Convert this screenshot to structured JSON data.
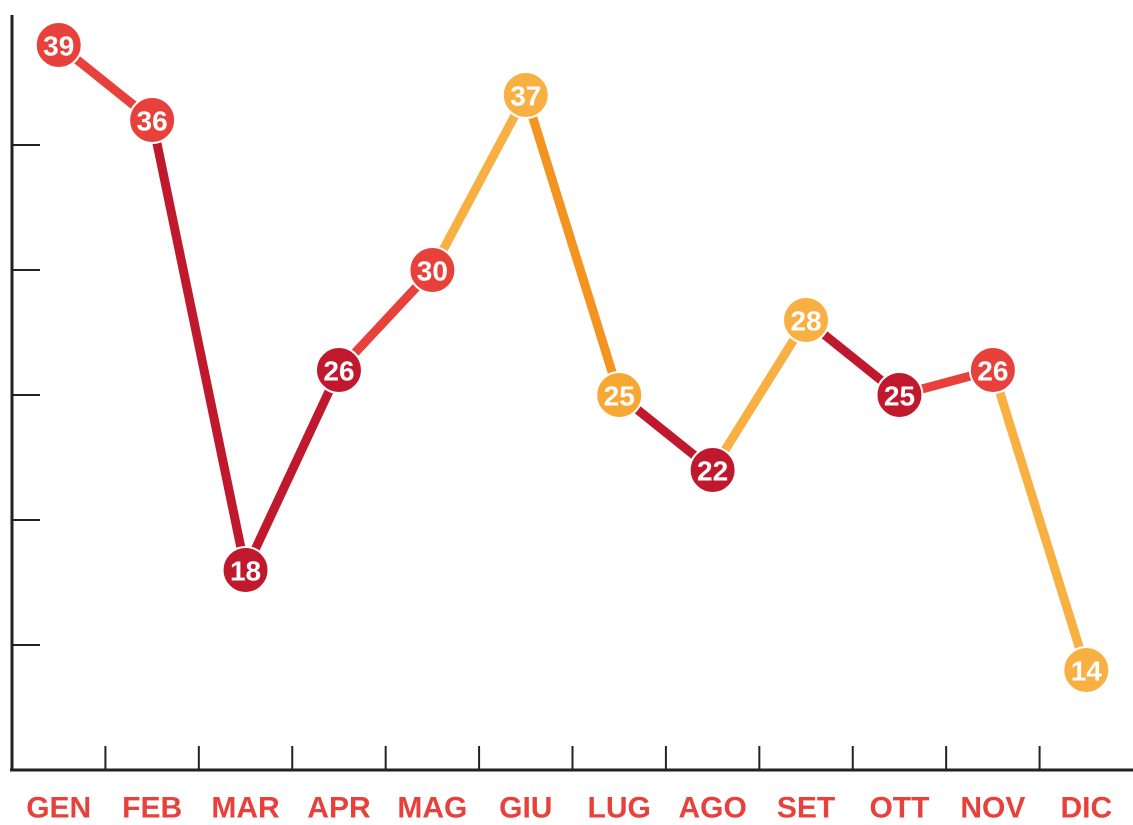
{
  "chart_data": {
    "type": "line",
    "categories": [
      "GEN",
      "FEB",
      "MAR",
      "APR",
      "MAG",
      "GIU",
      "LUG",
      "AGO",
      "SET",
      "OTT",
      "NOV",
      "DIC"
    ],
    "values": [
      39,
      36,
      18,
      26,
      30,
      37,
      25,
      22,
      28,
      25,
      26,
      14
    ],
    "point_colors": [
      "#e8403a",
      "#e8403a",
      "#c0192e",
      "#c0192e",
      "#e8403a",
      "#f9b042",
      "#f7a733",
      "#c0192e",
      "#f9b042",
      "#c0192e",
      "#e8403a",
      "#f9b042"
    ],
    "segment_colors": [
      "#e8403a",
      "#c0192e",
      "#c0192e",
      "#e8403a",
      "#f9b042",
      "#f39420",
      "#c0192e",
      "#f9b042",
      "#c0192e",
      "#e8403a",
      "#f9b042"
    ],
    "label_color": "#e8403a",
    "ylim": [
      10,
      40
    ],
    "yticks": [
      10,
      15,
      20,
      25,
      30,
      35
    ]
  }
}
